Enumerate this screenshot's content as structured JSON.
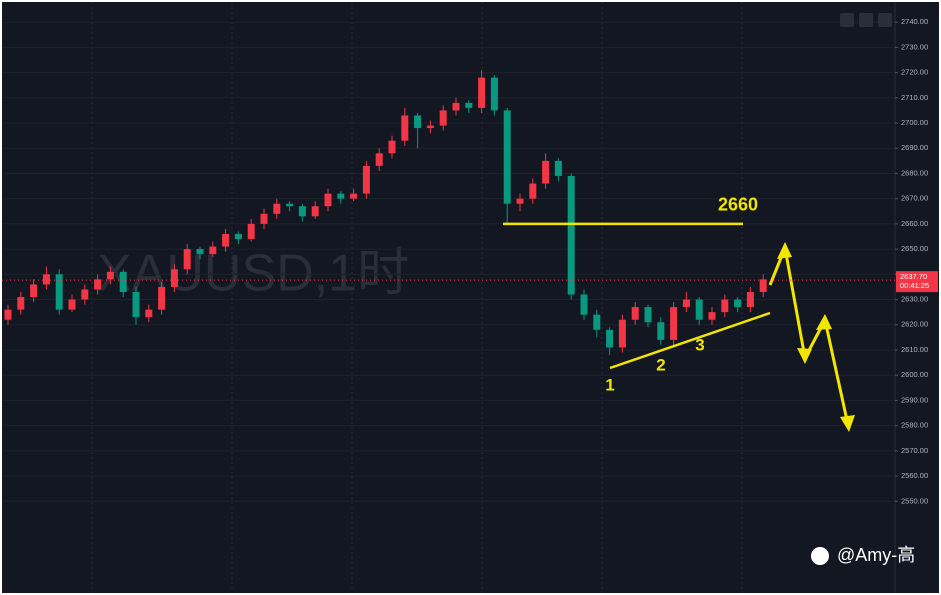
{
  "chart_data": {
    "type": "candlestick",
    "watermark": "XAUUSD,1时",
    "ylim": [
      2516,
      2748
    ],
    "yticks": [
      {
        "value": 2550,
        "label": "2550.00"
      },
      {
        "value": 2560,
        "label": "2560.00"
      },
      {
        "value": 2570,
        "label": "2570.00"
      },
      {
        "value": 2580,
        "label": "2580.00"
      },
      {
        "value": 2590,
        "label": "2590.00"
      },
      {
        "value": 2600,
        "label": "2600.00"
      },
      {
        "value": 2610,
        "label": "2610.00"
      },
      {
        "value": 2620,
        "label": "2620.00"
      },
      {
        "value": 2630,
        "label": "2630.00"
      },
      {
        "value": 2640,
        "label": "2640.00"
      },
      {
        "value": 2650,
        "label": "2650.00"
      },
      {
        "value": 2660,
        "label": "2660.00"
      },
      {
        "value": 2670,
        "label": "2670.00"
      },
      {
        "value": 2680,
        "label": "2680.00"
      },
      {
        "value": 2690,
        "label": "2690.00"
      },
      {
        "value": 2700,
        "label": "2700.00"
      },
      {
        "value": 2710,
        "label": "2710.00"
      },
      {
        "value": 2720,
        "label": "2720.00"
      },
      {
        "value": 2730,
        "label": "2730.00"
      },
      {
        "value": 2740,
        "label": "2740.00"
      }
    ],
    "grid": true,
    "up_color": "#f23645",
    "down_color": "#089981",
    "open": [
      2622,
      2626,
      2631,
      2636,
      2640,
      2626,
      2630,
      2634,
      2638,
      2641,
      2633,
      2623,
      2626,
      2635,
      2642,
      2650,
      2648,
      2651,
      2656,
      2654,
      2660,
      2664,
      2668,
      2667,
      2663,
      2667,
      2672,
      2670,
      2672,
      2683,
      2688,
      2693,
      2703,
      2698,
      2699,
      2705,
      2708,
      2706,
      2718,
      2705,
      2668,
      2670,
      2676,
      2685,
      2679,
      2632,
      2624,
      2618,
      2611,
      2622,
      2627,
      2621,
      2614,
      2627,
      2630,
      2622,
      2625,
      2630,
      2627,
      2633
    ],
    "high": [
      2628,
      2633,
      2638,
      2643,
      2642,
      2632,
      2636,
      2640,
      2643,
      2642,
      2635,
      2628,
      2637,
      2644,
      2652,
      2651,
      2653,
      2658,
      2657,
      2662,
      2666,
      2670,
      2669,
      2668,
      2669,
      2674,
      2673,
      2674,
      2685,
      2690,
      2695,
      2706,
      2704,
      2701,
      2707,
      2710,
      2709,
      2721,
      2719,
      2706,
      2672,
      2678,
      2688,
      2686,
      2680,
      2634,
      2626,
      2619,
      2624,
      2629,
      2628,
      2623,
      2629,
      2633,
      2631,
      2627,
      2632,
      2631,
      2635,
      2640
    ],
    "low": [
      2620,
      2624,
      2629,
      2634,
      2624,
      2625,
      2628,
      2632,
      2636,
      2631,
      2620,
      2621,
      2624,
      2633,
      2640,
      2646,
      2647,
      2649,
      2652,
      2653,
      2658,
      2662,
      2665,
      2661,
      2662,
      2665,
      2668,
      2669,
      2670,
      2681,
      2686,
      2691,
      2690,
      2696,
      2697,
      2703,
      2704,
      2704,
      2703,
      2660,
      2665,
      2668,
      2674,
      2677,
      2630,
      2622,
      2615,
      2608,
      2609,
      2620,
      2619,
      2612,
      2612,
      2625,
      2620,
      2620,
      2623,
      2625,
      2625,
      2631
    ],
    "close": [
      2626,
      2631,
      2636,
      2640,
      2626,
      2630,
      2634,
      2638,
      2641,
      2633,
      2623,
      2626,
      2635,
      2642,
      2650,
      2648,
      2651,
      2656,
      2654,
      2660,
      2664,
      2668,
      2667,
      2663,
      2667,
      2672,
      2670,
      2672,
      2683,
      2688,
      2693,
      2703,
      2698,
      2699,
      2705,
      2708,
      2706,
      2718,
      2705,
      2668,
      2670,
      2676,
      2685,
      2679,
      2632,
      2624,
      2618,
      2611,
      2622,
      2627,
      2621,
      2614,
      2627,
      2630,
      2622,
      2625,
      2630,
      2627,
      2633,
      2638
    ],
    "current_price": {
      "value": 2637.7,
      "label": "2637.70"
    },
    "countdown": "00:41:25",
    "level": {
      "value": 2660,
      "label": "2660"
    },
    "points": [
      "1",
      "2",
      "3"
    ],
    "credit": "@Amy-高"
  }
}
